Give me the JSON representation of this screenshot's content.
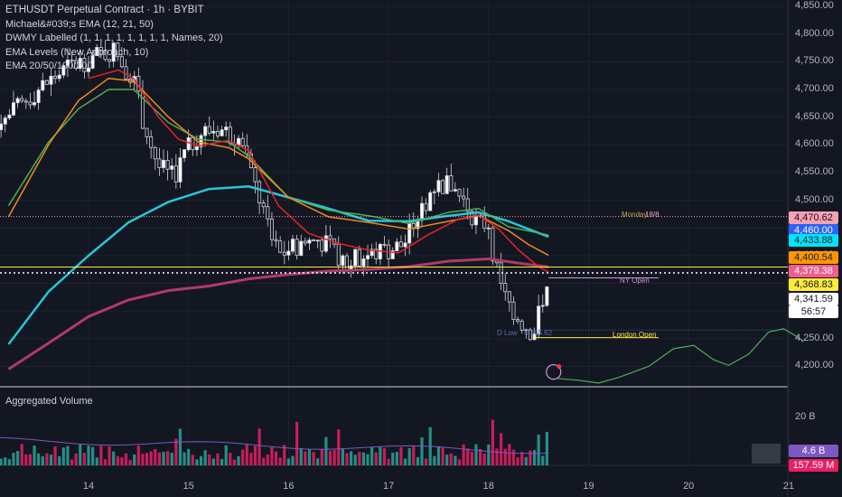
{
  "header": {
    "title": "ETHUSDT Perpetual Contract · 1h · BYBIT",
    "indicators": [
      "Michael&#039;s EMA (12, 21, 50)",
      "DWMY Labelled (1, 1, 1, 1, 1, 1, 1, 1, Names, 20)",
      "EMA Levels (New Approach, 10)",
      "EMA 20/50/100/200"
    ]
  },
  "volume_pane": {
    "label": "Aggregated Volume",
    "axis_label": "20 B",
    "tags": [
      {
        "text": "4.6 B",
        "color": "#7e57c2"
      },
      {
        "text": "157.59 M",
        "color": "#e91e63"
      }
    ]
  },
  "level_labels": {
    "monday": "Monday",
    "monday_suffix": "18/8",
    "ny_open": "NY Open",
    "london_open": "London Open",
    "daily_low": "D Low",
    "daily_low_value": "4,265.62"
  },
  "price_tags": [
    {
      "text": "4,470.62",
      "bg": "#f7a1b1",
      "fg": "#131722"
    },
    {
      "text": "4,460.00",
      "bg": "#2962ff",
      "fg": "#ffffff"
    },
    {
      "text": "4,433.88",
      "bg": "#00e5ff",
      "fg": "#131722"
    },
    {
      "text": "4,400.54",
      "bg": "#ff9800",
      "fg": "#131722"
    },
    {
      "text": "4,379.38",
      "bg": "#ef5e8a",
      "fg": "#ffffff"
    },
    {
      "text": "4,368.83",
      "bg": "#ffeb3b",
      "fg": "#131722"
    },
    {
      "text": "4,341.59",
      "bg": "#ffffff",
      "fg": "#131722"
    },
    {
      "text": "56:57",
      "bg": "#ffffff",
      "fg": "#131722"
    }
  ],
  "colors": {
    "background": "#131722",
    "up": "#e0e3eb",
    "down": "#e0e3eb",
    "ema12": "#e8222b",
    "ema21": "#ef8a1e",
    "ema50": "#4caf50",
    "ema100": "#26c6da",
    "ema200": "#b03a6a",
    "vol_up": "#26a69a",
    "vol_down": "#e91e63",
    "vol_ma": "#7e57c2"
  },
  "chart_data": {
    "type": "candlestick",
    "y_axis_ticks": [
      "4,850.00",
      "4,800.00",
      "4,750.00",
      "4,700.00",
      "4,650.00",
      "4,600.00",
      "4,550.00",
      "4,500.00",
      "4,450.00",
      "4,400.00",
      "4,350.00",
      "4,300.00",
      "4,250.00",
      "4,200.00"
    ],
    "x_axis_ticks": [
      "14",
      "15",
      "16",
      "17",
      "18",
      "19",
      "20",
      "21"
    ],
    "ylim": [
      4170,
      4860
    ],
    "levels": {
      "monday_high": 4470.62,
      "ny_open": 4379.38,
      "london_open": 4252,
      "daily_low": 4265.62,
      "last_price": 4368.83
    },
    "projection_start_day": 18.6,
    "projection": [
      [
        18.6,
        4195
      ],
      [
        18.7,
        4178
      ],
      [
        18.9,
        4175
      ],
      [
        19.1,
        4170
      ],
      [
        19.3,
        4180
      ],
      [
        19.6,
        4200
      ],
      [
        19.85,
        4232
      ],
      [
        20.05,
        4238
      ],
      [
        20.25,
        4212
      ],
      [
        20.4,
        4202
      ],
      [
        20.6,
        4222
      ],
      [
        20.8,
        4262
      ],
      [
        20.95,
        4268
      ],
      [
        21.1,
        4252
      ],
      [
        21.15,
        4245
      ]
    ],
    "ema_series": {
      "ema200": [
        [
          13.2,
          4195
        ],
        [
          13.6,
          4242
        ],
        [
          14.0,
          4290
        ],
        [
          14.4,
          4320
        ],
        [
          14.8,
          4337
        ],
        [
          15.2,
          4345
        ],
        [
          15.6,
          4358
        ],
        [
          16.0,
          4366
        ],
        [
          16.4,
          4372
        ],
        [
          16.8,
          4375
        ],
        [
          17.2,
          4380
        ],
        [
          17.6,
          4390
        ],
        [
          18.0,
          4394
        ],
        [
          18.4,
          4384
        ],
        [
          18.6,
          4379.38
        ]
      ],
      "ema100": [
        [
          13.2,
          4240
        ],
        [
          13.6,
          4335
        ],
        [
          14.0,
          4400
        ],
        [
          14.4,
          4460
        ],
        [
          14.8,
          4497
        ],
        [
          15.2,
          4520
        ],
        [
          15.6,
          4525
        ],
        [
          16.0,
          4505
        ],
        [
          16.4,
          4485
        ],
        [
          16.8,
          4463
        ],
        [
          17.2,
          4462
        ],
        [
          17.6,
          4472
        ],
        [
          17.9,
          4478
        ],
        [
          18.2,
          4462
        ],
        [
          18.6,
          4433.88
        ]
      ],
      "ema50": [
        [
          13.2,
          4490
        ],
        [
          13.6,
          4605
        ],
        [
          13.9,
          4665
        ],
        [
          14.2,
          4700
        ],
        [
          14.45,
          4700
        ],
        [
          14.8,
          4640
        ],
        [
          15.1,
          4610
        ],
        [
          15.4,
          4605
        ],
        [
          15.6,
          4580
        ],
        [
          16.0,
          4505
        ],
        [
          16.4,
          4482
        ],
        [
          16.8,
          4472
        ],
        [
          17.2,
          4458
        ],
        [
          17.6,
          4478
        ],
        [
          17.9,
          4485
        ],
        [
          18.2,
          4452
        ],
        [
          18.6,
          4437
        ]
      ],
      "ema21": [
        [
          13.2,
          4470
        ],
        [
          13.6,
          4600
        ],
        [
          13.9,
          4680
        ],
        [
          14.2,
          4720
        ],
        [
          14.45,
          4715
        ],
        [
          14.8,
          4650
        ],
        [
          15.1,
          4605
        ],
        [
          15.4,
          4595
        ],
        [
          15.6,
          4575
        ],
        [
          16.0,
          4505
        ],
        [
          16.4,
          4470
        ],
        [
          16.8,
          4460
        ],
        [
          17.2,
          4448
        ],
        [
          17.6,
          4462
        ],
        [
          17.9,
          4472
        ],
        [
          18.2,
          4445
        ],
        [
          18.4,
          4420
        ],
        [
          18.6,
          4400.54
        ]
      ],
      "ema12": [
        [
          14.0,
          4720
        ],
        [
          14.3,
          4735
        ],
        [
          14.45,
          4720
        ],
        [
          14.7,
          4650
        ],
        [
          14.9,
          4610
        ],
        [
          15.1,
          4598
        ],
        [
          15.4,
          4608
        ],
        [
          15.6,
          4590
        ],
        [
          15.9,
          4490
        ],
        [
          16.2,
          4440
        ],
        [
          16.5,
          4422
        ],
        [
          16.8,
          4410
        ],
        [
          17.1,
          4405
        ],
        [
          17.4,
          4438
        ],
        [
          17.7,
          4466
        ],
        [
          17.9,
          4473
        ],
        [
          18.1,
          4448
        ],
        [
          18.3,
          4410
        ],
        [
          18.5,
          4380
        ],
        [
          18.6,
          4370
        ]
      ]
    }
  }
}
